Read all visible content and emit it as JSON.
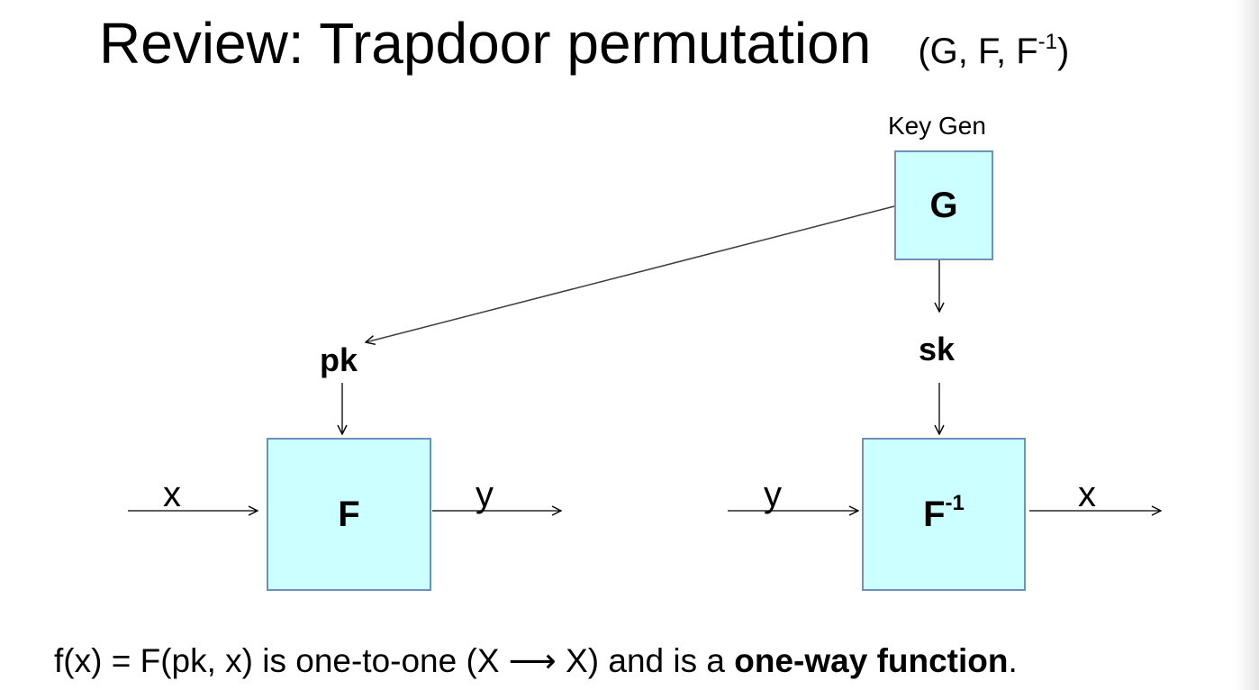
{
  "title": {
    "main": "Review: Trapdoor permutation",
    "tuple_prefix": "(G, F, F",
    "tuple_sup": "-1",
    "tuple_suffix": ")"
  },
  "diagram": {
    "keygen_label": "Key Gen",
    "g_box": "G",
    "f_box": "F",
    "finv_box": "F",
    "finv_sup": "-1",
    "pk": "pk",
    "sk": "sk",
    "f_input": "x",
    "f_output": "y",
    "finv_input": "y",
    "finv_output": "x"
  },
  "caption": {
    "prefix": "f(x) = F(pk, x)  is one-to-one  (X ⟶ X)  and is a ",
    "emphasis": "one-way function",
    "suffix": "."
  }
}
